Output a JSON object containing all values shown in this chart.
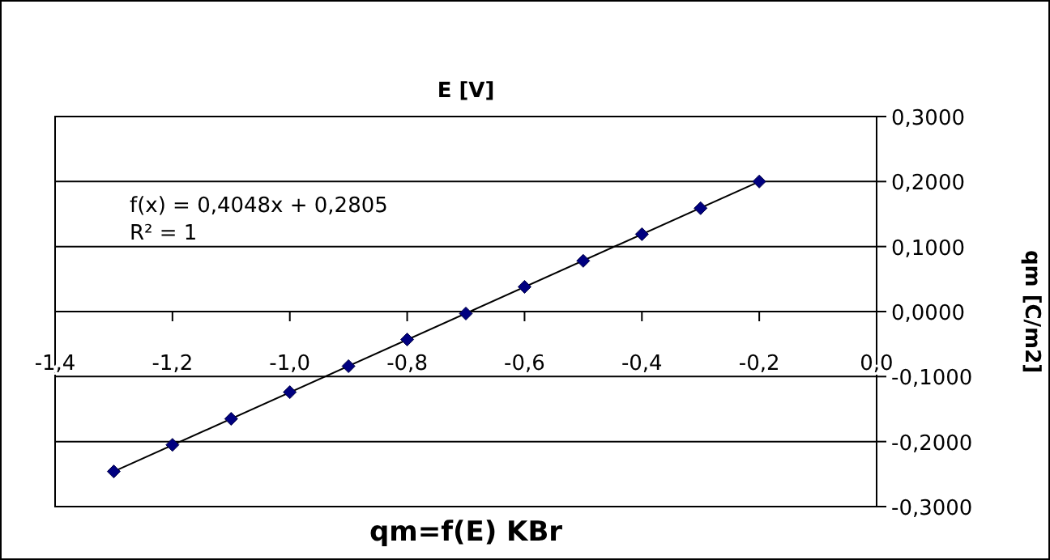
{
  "chart_data": {
    "type": "scatter",
    "title": "qm=f(E) KBr",
    "xlabel": "E [V]",
    "ylabel": "qm [C/m2]",
    "annotations": [
      "f(x) = 0,4048x + 0,2805",
      "R² = 1"
    ],
    "x": [
      -1.3,
      -1.2,
      -1.1,
      -1.0,
      -0.9,
      -0.8,
      -0.7,
      -0.6,
      -0.5,
      -0.4,
      -0.3,
      -0.2
    ],
    "series": [
      {
        "color": "#000080",
        "marker": "diamond",
        "values": [
          -0.246,
          -0.205,
          -0.165,
          -0.124,
          -0.084,
          -0.043,
          -0.003,
          0.038,
          0.078,
          0.119,
          0.159,
          0.2
        ]
      },
      {
        "type": "line",
        "color": "#000000",
        "marker": "none",
        "x": [
          -1.3,
          -0.2
        ],
        "values": [
          -0.246,
          0.2
        ]
      }
    ],
    "xlim": [
      -1.4,
      0
    ],
    "ylim": [
      -0.3,
      0.3
    ],
    "xticks": [
      {
        "value": -1.4,
        "label": "-1,4"
      },
      {
        "value": -1.2,
        "label": "-1,2"
      },
      {
        "value": -1.0,
        "label": "-1,0"
      },
      {
        "value": -0.8,
        "label": "-0,8"
      },
      {
        "value": -0.6,
        "label": "-0,6"
      },
      {
        "value": -0.4,
        "label": "-0,4"
      },
      {
        "value": -0.2,
        "label": "-0,2"
      },
      {
        "value": 0,
        "label": "0,0"
      }
    ],
    "yticks": [
      {
        "value": -0.3,
        "label": "-0,3000"
      },
      {
        "value": -0.2,
        "label": "-0,2000"
      },
      {
        "value": -0.1,
        "label": "-0,1000"
      },
      {
        "value": 0,
        "label": "0,0000"
      },
      {
        "value": 0.1,
        "label": "0,1000"
      },
      {
        "value": 0.2,
        "label": "0,2000"
      },
      {
        "value": 0.3,
        "label": "0,3000"
      }
    ],
    "grid": "y"
  }
}
